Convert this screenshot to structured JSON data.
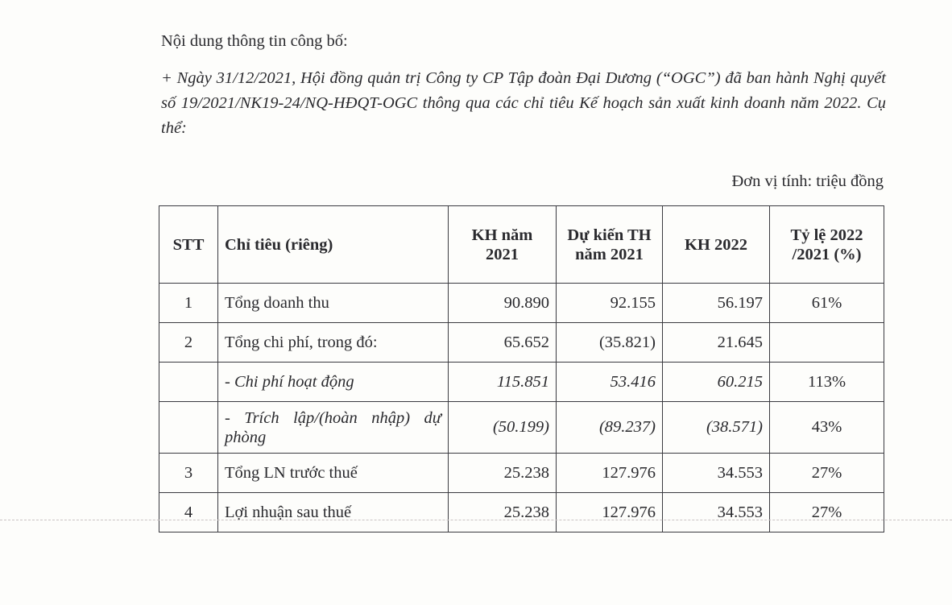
{
  "intro": "Nội dung thông tin công bố:",
  "body": "+ Ngày 31/12/2021, Hội đồng quản trị Công ty CP Tập đoàn Đại Dương (“OGC”) đã ban hành Nghị quyết số 19/2021/NK19-24/NQ-HĐQT-OGC thông qua các chỉ tiêu Kế hoạch sản xuất kinh doanh năm 2022. Cụ thể:",
  "unit": "Đơn vị tính: triệu đồng",
  "table": {
    "headers": [
      "STT",
      "Chỉ tiêu (riêng)",
      "KH năm 2021",
      "Dự kiến TH năm 2021",
      "KH 2022",
      "Tỷ lệ 2022 /2021 (%)"
    ],
    "rows": [
      {
        "stt": "1",
        "item": "Tổng doanh thu",
        "kh2021": "90.890",
        "th2021": "92.155",
        "kh2022": "56.197",
        "ratio": "61%"
      },
      {
        "stt": "2",
        "item": "Tổng chi phí, trong đó:",
        "kh2021": "65.652",
        "th2021": "(35.821)",
        "kh2022": "21.645",
        "ratio": ""
      },
      {
        "stt": "",
        "item": "- Chi phí hoạt động",
        "kh2021": "115.851",
        "th2021": "53.416",
        "kh2022": "60.215",
        "ratio": "113%"
      },
      {
        "stt": "",
        "item": "- Trích lập/(hoàn nhập) dự phòng",
        "kh2021": "(50.199)",
        "th2021": "(89.237)",
        "kh2022": "(38.571)",
        "ratio": "43%"
      },
      {
        "stt": "3",
        "item": "Tổng LN trước thuế",
        "kh2021": "25.238",
        "th2021": "127.976",
        "kh2022": "34.553",
        "ratio": "27%"
      },
      {
        "stt": "4",
        "item": "Lợi nhuận sau thuế",
        "kh2021": "25.238",
        "th2021": "127.976",
        "kh2022": "34.553",
        "ratio": "27%"
      }
    ]
  }
}
